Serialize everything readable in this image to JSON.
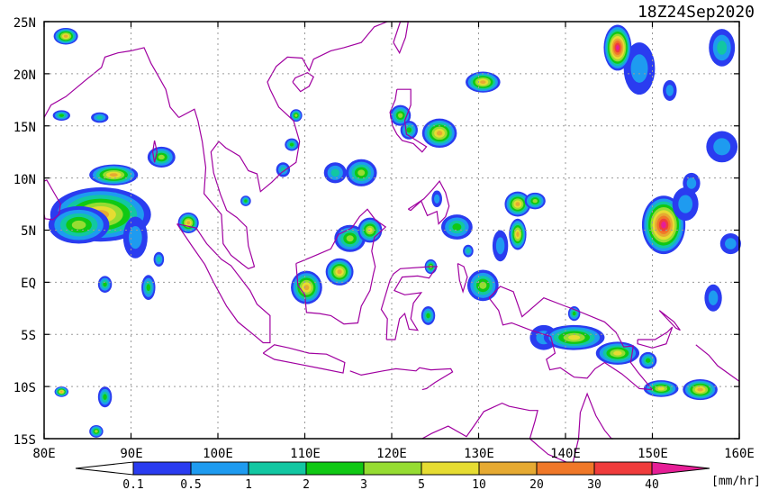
{
  "title": "18Z24Sep2020",
  "units": "[mm/hr]",
  "lat_labels": [
    "25N",
    "20N",
    "15N",
    "10N",
    "5N",
    "EQ",
    "5S",
    "10S",
    "15S"
  ],
  "lon_labels": [
    "80E",
    "90E",
    "100E",
    "110E",
    "120E",
    "130E",
    "140E",
    "150E",
    "160E"
  ],
  "colorbar": {
    "labels": [
      "0.1",
      "0.5",
      "1",
      "2",
      "3",
      "5",
      "10",
      "20",
      "30",
      "40"
    ],
    "colors": [
      "#2a3cf0",
      "#1e9bf0",
      "#12c7a2",
      "#10c814",
      "#96dc32",
      "#e6dc32",
      "#e6aa32",
      "#f07828",
      "#f03c3c",
      "#e61e96"
    ]
  },
  "coast_color": "#a000a0",
  "grid_color": "#9a9a9a"
}
